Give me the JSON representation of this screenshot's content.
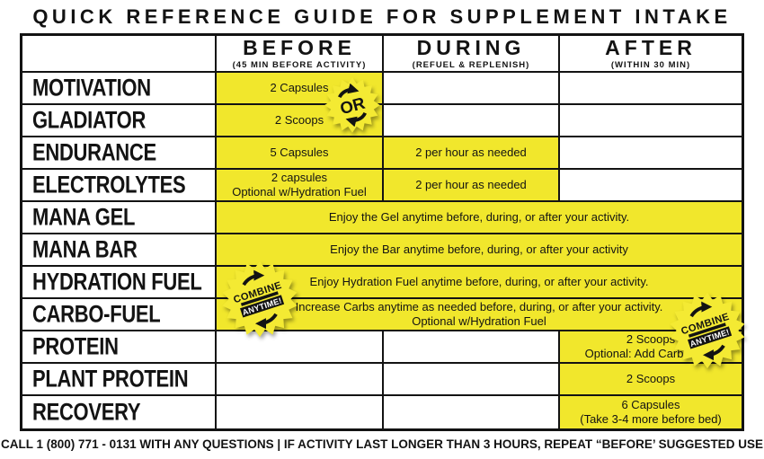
{
  "title": "QUICK REFERENCE GUIDE FOR SUPPLEMENT INTAKE",
  "columns": {
    "before": {
      "label": "BEFORE",
      "subtitle": "(45 MIN BEFORE ACTIVITY)"
    },
    "during": {
      "label": "DURING",
      "subtitle": "(REFUEL & REPLENISH)"
    },
    "after": {
      "label": "AFTER",
      "subtitle": "(WITHIN 30 MIN)"
    }
  },
  "rows": [
    {
      "label": "MOTIVATION",
      "before": "2 Capsules",
      "during": "",
      "after": ""
    },
    {
      "label": "GLADIATOR",
      "before": "2 Scoops",
      "during": "",
      "after": ""
    },
    {
      "label": "ENDURANCE",
      "before": "5 Capsules",
      "during": "2 per hour as needed",
      "after": ""
    },
    {
      "label": "ELECTROLYTES",
      "before": "2 capsules\nOptional w/Hydration Fuel",
      "during": "2 per hour as needed",
      "after": ""
    },
    {
      "label": "MANA GEL",
      "span": "Enjoy the Gel anytime before, during, or after your activity."
    },
    {
      "label": "MANA BAR",
      "span": "Enjoy the Bar anytime before, during, or after your activity"
    },
    {
      "label": "HYDRATION FUEL",
      "span": "Enjoy Hydration Fuel anytime before, during, or after your activity."
    },
    {
      "label": "CARBO-FUEL",
      "span": "Increase Carbs anytime as needed before, during, or after your activity.\nOptional w/Hydration Fuel"
    },
    {
      "label": "PROTEIN",
      "before": "",
      "during": "",
      "after": "2 Scoops\nOptional: Add Carbo-Fuel"
    },
    {
      "label": "PLANT PROTEIN",
      "before": "",
      "during": "",
      "after": "2 Scoops"
    },
    {
      "label": "RECOVERY",
      "before": "",
      "during": "",
      "after": "6 Capsules\n(Take 3-4 more before bed)"
    }
  ],
  "badges": {
    "or_label": "OR",
    "combine_top": "COMBINE",
    "combine_bottom": "ANYTIME!"
  },
  "footer": "CALL 1 (800) 771 - 0131 WITH ANY QUESTIONS | IF ACTIVITY LAST LONGER THAN 3 HOURS, REPEAT “BEFORE’ SUGGESTED USE",
  "colors": {
    "highlight_yellow": "#F1E72C",
    "ink": "#131313"
  }
}
